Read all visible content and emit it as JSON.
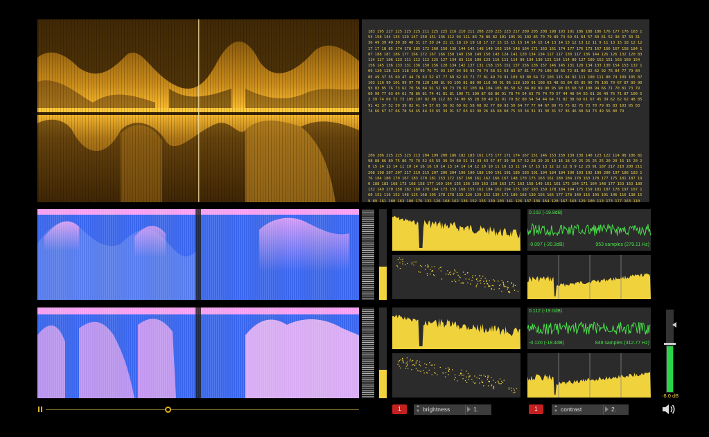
{
  "data_panel": {
    "block1": "183 195 227 225 225 225 211 225 225 216 210 211 208 220 225 223 217 209 205 208 198 193 191 186 188 186 176 177 176 163 154 158 144 134 129 147 150 151 136 112 94 111 83 78 86 82 101 105 91 102 85 70 79 89 73 69 61 64 57 60 61 52 38 37 33 31 36 49 39 40 30 30 40 31 27 30 24 21 21 18 19 19 18 17 17 15 15 15 15 14 14 15 14 13 14 13 12 13 12 11 9 11 13 15 18 12 12 17 17 18 85 174 178 185 172 160 150 136 144 145 148 149 163 154 148 164 171 163 161 174 177 176 173 167 166 167 158 184 187 188 187 186 177 166 172 167 166 158 149 158 149 150 143 124 141 120 134 134 117 117 130 117 136 144 126 126 132 120 83 114 127 106 123 111 112 112 125 127 134 83 116 109 123 116 111 114 99 134 130 121 114 114 89 127 109 152 151 163 160 154 156 145 136 133 131 136 150 156 128 134 142 137 131 158 155 151 137 156 136 157 146 145 131 128 134 133 130 154 153 132 109 120 128 125 118 103 99 76 71 93 107 94 93 93 70 74 58 52 63 83 87 81 77 79 100 58 66 72 81 80 82 62 92 76 84 77 79 84 85 49 37 55 69 47 44 76 63 52 67 77 69 62 63 71 77 81 49 79 91 103 63 80 64 72 103 115 94 92 111 100 111 80 74 109 105 87 103 116 90 101 99 97 78 120 100 81 93 105 81 88 90 118 90 91 96 118 130 91 108 63 48 65 84 85 85 90 76 105 79 67 87 89 90 93 83 85 76 73 62 70 56 84 91 52 69 73 78 67 103 84 104 105 86 50 62 84 89 89 90 95 90 93 68 53 108 94 66 71 70 81 73 79 60 90 77 63 64 61 78 86 81 74 41 81 81 100 71 100 87 68 86 91 78 74 54 63 76 74 70 57 44 48 64 55 61 26 49 76 71 87 100 52 39 74 69 72 73 105 107 82 88 112 83 74 90 65 28 30 49 31 91 79 82 80 54 54 44 64 71 82 38 69 61 67 45 39 62 62 62 48 85 91 42 37 52 59 39 82 41 54 57 65 56 92 69 62 58 68 92 77 89 93 50 64 77 77 64 67 89 75 75 82 75 73 70 79 95 83 103 95 83 74 66 67 57 66 78 54 45 44 33 65 39 91 57 63 62 30 26 46 68 68 75 33 34 31 31 30 31 57 36 46 68 64 73 49 56 80 79",
    "block2": "206 206 225 225 225 213 204 199 200 186 182 183 161 173 177 171 174 167 151 146 153 150 139 138 140 123 122 114 98 106 81 98 88 86 89 75 86 75 76 52 63 55 39 34 60 51 31 43 43 57 47 39 38 57 52 28 29 25 19 16 18 19 25 25 25 25 20 20 16 15 20 20 15 14 13 14 11 10 14 16 16 19 14 13 14 14 14 12 10 10 11 16 13 11 14 17 15 13 12 12 12 8 9 12 23 91 187 217 210 200 211 208 198 207 207 217 219 215 207 206 204 190 190 188 190 191 191 186 193 191 194 184 184 190 193 192 199 200 197 180 183 176 184 180 170 167 183 170 181 153 172 167 160 161 162 166 167 148 170 175 163 161 180 184 178 163 178 177 175 181 187 190 188 183 168 173 168 158 177 169 164 155 156 169 163 150 163 171 163 158 149 161 161 175 164 171 164 148 177 153 163 180 132 149 170 158 182 160 170 164 173 153 168 155 161 184 162 194 175 187 183 159 178 184 194 175 159 181 187 178 197 167 160 152 116 152 148 125 168 195 178 178 133 126 129 152 139 171 189 163 130 156 166 177 178 140 116 103 101 146 116 138 159 89 161 180 163 180 176 132 126 168 162 136 152 155 139 103 141 126 137 136 164 120 167 163 129 100 113 173 177 163 110 140 201 183 181 142 162 166 160 152 117 165 118 97 125 163 152 117 142 139 103 149 125 146 126 130 140 142 144 144 107 109 116 123 130 122 126 133 122 100 115 120 101 105 102 76 118 128 97 117 89 119 130 145 122 133 125 122 119 112 103 105 120 104 86 82 104 162 123 114 140 123 112 106 109 91 95 100 81 117 99 105 110 100 114 114 70 83 70 83 106 104 98 90 82 110 103 110 104 122 134 143 96 68 115 120 99 98 101 98 107 88 88 95 84 77 100 93 103 107 126 115 105 75 82 108 122 85 96 96 96 112 122 119 98 126 110 100 81 109 73 105 107 101 105 98 113 117 114 82 86 122 120 103 122 101 101 120 107 84 80 85 79 102 102 101 101 103 96 110 112 94 108 105 101 103 103 119 103 112 119 81 89 102 89 91 110 104 72 103 85 72 79 100 123 110 98 79 83 67 79 99 89 88 86 92 78 106 88 112 101 92 109 110 99 95 96 95 105 93 88 99 86 63 110 84 92 100 88 94 88 110 102 114 130 109 75 97"
  },
  "scope1": {
    "top_label": "0.102 (-19.8dB)",
    "bottom_label": "-0.097 (-20.3dB)",
    "samples": "953 samples (279.11 Hz)"
  },
  "scope2": {
    "top_label": "0.112 (-19.0dB)",
    "bottom_label": "-0.120 (-18.4dB)",
    "samples": "848 samples (312.77 Hz)"
  },
  "meters": {
    "level1": 0.37,
    "level2": 0.31
  },
  "controls": {
    "left": {
      "badge": "1",
      "param": "brightness",
      "value": "1."
    },
    "right": {
      "badge": "1",
      "param": "contrast",
      "value": "2."
    }
  },
  "transport": {
    "position": 0.39
  },
  "volume": {
    "db_label": "-8.0 dB",
    "level": 0.55
  },
  "colors": {
    "accent": "#f0d23c",
    "scope_green": "#49e04a",
    "badge_red": "#c42020",
    "spectro_blue": "#3860e8",
    "spectro_pink": "#f0a0f0"
  }
}
